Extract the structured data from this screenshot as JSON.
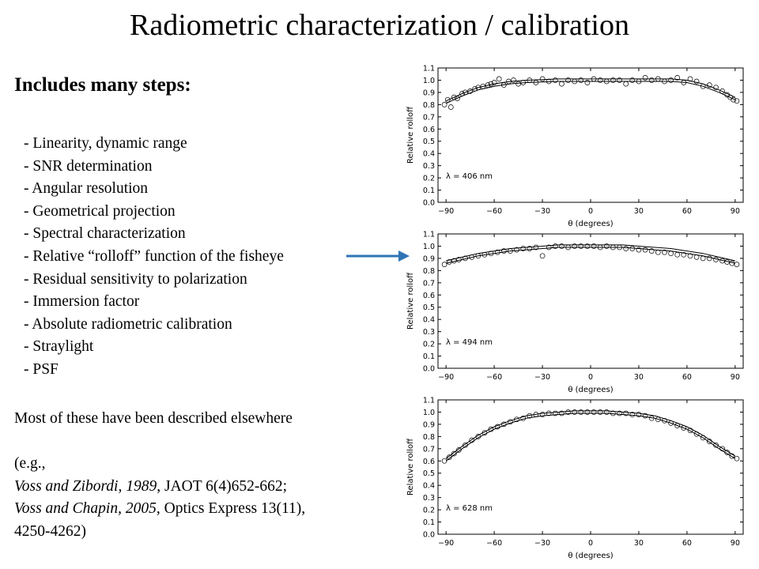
{
  "title": "Radiometric characterization / calibration",
  "subhead": "Includes many steps:",
  "steps": [
    "-  Linearity, dynamic range",
    "-  SNR determination",
    "- Angular resolution",
    "-  Geometrical projection",
    "-  Spectral characterization",
    "-  Relative “rolloff” function of the fisheye",
    "-  Residual sensitivity to polarization",
    "-  Immersion factor",
    "- Absolute radiometric calibration",
    "-  Straylight",
    "-  PSF"
  ],
  "note": {
    "line1": "Most of these have been described elsewhere",
    "line2": "(e.g.,",
    "ref1_authors": "Voss and Zibordi, 1989",
    "ref1_rest": ", JAOT 6(4)652-662;",
    "ref2_authors": "Voss and Chapin, 2005",
    "ref2_rest": ", Optics Express 13(11),",
    "ref2_pages": "4250-4262)"
  },
  "arrow_color": "#2e74b5",
  "chart_data": [
    {
      "type": "scatter",
      "annotation": "λ = 406 nm",
      "xlabel": "θ (degrees)",
      "ylabel": "Relative rolloff",
      "xlim": [
        -95,
        95
      ],
      "ylim": [
        0,
        1.1
      ],
      "xticks": [
        "−90",
        "−60",
        "−30",
        "0",
        "30",
        "60",
        "90"
      ],
      "yticks": [
        "0.0",
        "0.1",
        "0.2",
        "0.3",
        "0.4",
        "0.5",
        "0.6",
        "0.7",
        "0.8",
        "0.9",
        "1.0",
        "1.1"
      ],
      "grid": false,
      "fit_curve": {
        "x": [
          -90,
          -80,
          -70,
          -60,
          -50,
          -40,
          -30,
          -20,
          -10,
          0,
          10,
          20,
          30,
          40,
          50,
          60,
          70,
          80,
          90
        ],
        "y": [
          0.82,
          0.88,
          0.93,
          0.96,
          0.98,
          0.99,
          0.995,
          1.0,
          1.0,
          1.0,
          1.0,
          1.0,
          1.0,
          1.0,
          1.0,
          0.99,
          0.96,
          0.91,
          0.85
        ]
      },
      "points": {
        "x": [
          -91,
          -89,
          -87,
          -85,
          -83,
          -80,
          -78,
          -75,
          -72,
          -70,
          -67,
          -64,
          -62,
          -60,
          -57,
          -54,
          -51,
          -48,
          -45,
          -42,
          -38,
          -34,
          -30,
          -26,
          -22,
          -18,
          -14,
          -10,
          -6,
          -2,
          2,
          6,
          10,
          14,
          18,
          22,
          26,
          30,
          34,
          38,
          42,
          46,
          50,
          54,
          58,
          62,
          66,
          70,
          74,
          78,
          82,
          85,
          87,
          89,
          91
        ],
        "y": [
          0.8,
          0.84,
          0.78,
          0.86,
          0.85,
          0.89,
          0.9,
          0.91,
          0.93,
          0.94,
          0.95,
          0.96,
          0.97,
          0.98,
          1.01,
          0.96,
          0.99,
          1.0,
          0.97,
          0.98,
          1.0,
          0.98,
          1.01,
          0.99,
          1.0,
          0.97,
          1.0,
          0.99,
          1.0,
          0.98,
          1.01,
          1.0,
          0.99,
          1.0,
          1.0,
          0.97,
          1.0,
          0.99,
          1.02,
          1.0,
          1.01,
          0.99,
          1.0,
          1.02,
          0.98,
          1.01,
          0.99,
          0.95,
          0.96,
          0.94,
          0.91,
          0.88,
          0.86,
          0.84,
          0.83
        ]
      }
    },
    {
      "type": "scatter",
      "annotation": "λ = 494 nm",
      "xlabel": "θ (degrees)",
      "ylabel": "Relative rolloff",
      "xlim": [
        -95,
        95
      ],
      "ylim": [
        0,
        1.1
      ],
      "xticks": [
        "−90",
        "−60",
        "−30",
        "0",
        "30",
        "60",
        "90"
      ],
      "yticks": [
        "0.0",
        "0.1",
        "0.2",
        "0.3",
        "0.4",
        "0.5",
        "0.6",
        "0.7",
        "0.8",
        "0.9",
        "1.0",
        "1.1"
      ],
      "grid": false,
      "fit_curve": {
        "x": [
          -90,
          -80,
          -70,
          -60,
          -50,
          -40,
          -30,
          -20,
          -10,
          0,
          10,
          20,
          30,
          40,
          50,
          60,
          70,
          80,
          90
        ],
        "y": [
          0.87,
          0.9,
          0.93,
          0.95,
          0.97,
          0.98,
          0.99,
          1.0,
          1.0,
          1.0,
          1.0,
          1.0,
          0.99,
          0.98,
          0.97,
          0.95,
          0.93,
          0.9,
          0.87
        ]
      },
      "points": {
        "x": [
          -91,
          -88,
          -85,
          -82,
          -78,
          -74,
          -70,
          -66,
          -62,
          -58,
          -54,
          -50,
          -46,
          -42,
          -38,
          -34,
          -30,
          -26,
          -22,
          -18,
          -14,
          -10,
          -6,
          -2,
          2,
          6,
          10,
          14,
          18,
          22,
          26,
          30,
          34,
          38,
          42,
          46,
          50,
          54,
          58,
          62,
          66,
          70,
          74,
          78,
          82,
          85,
          88,
          91
        ],
        "y": [
          0.85,
          0.87,
          0.88,
          0.89,
          0.9,
          0.91,
          0.92,
          0.93,
          0.94,
          0.95,
          0.96,
          0.96,
          0.97,
          0.98,
          0.98,
          0.99,
          0.92,
          0.99,
          1.0,
          1.0,
          0.99,
          1.0,
          1.0,
          1.0,
          1.0,
          0.99,
          1.0,
          0.99,
          0.99,
          0.98,
          0.98,
          0.97,
          0.97,
          0.96,
          0.95,
          0.95,
          0.94,
          0.93,
          0.93,
          0.92,
          0.91,
          0.9,
          0.9,
          0.89,
          0.88,
          0.87,
          0.86,
          0.85
        ]
      }
    },
    {
      "type": "scatter",
      "annotation": "λ = 628 nm",
      "xlabel": "θ (degrees)",
      "ylabel": "Relative rolloff",
      "xlim": [
        -95,
        95
      ],
      "ylim": [
        0,
        1.1
      ],
      "xticks": [
        "−90",
        "−60",
        "−30",
        "0",
        "30",
        "60",
        "90"
      ],
      "yticks": [
        "0.0",
        "0.1",
        "0.2",
        "0.3",
        "0.4",
        "0.5",
        "0.6",
        "0.7",
        "0.8",
        "0.9",
        "1.0",
        "1.1"
      ],
      "grid": false,
      "fit_curve": {
        "x": [
          -90,
          -80,
          -70,
          -60,
          -50,
          -40,
          -30,
          -20,
          -10,
          0,
          10,
          20,
          30,
          40,
          50,
          60,
          70,
          80,
          90
        ],
        "y": [
          0.61,
          0.71,
          0.8,
          0.87,
          0.92,
          0.96,
          0.98,
          0.99,
          1.0,
          1.0,
          1.0,
          0.99,
          0.98,
          0.96,
          0.92,
          0.87,
          0.8,
          0.71,
          0.63
        ]
      },
      "points": {
        "x": [
          -91,
          -88,
          -85,
          -82,
          -78,
          -74,
          -70,
          -66,
          -62,
          -58,
          -54,
          -50,
          -46,
          -42,
          -38,
          -34,
          -30,
          -26,
          -22,
          -18,
          -14,
          -10,
          -6,
          -2,
          2,
          6,
          10,
          14,
          18,
          22,
          26,
          30,
          34,
          38,
          42,
          46,
          50,
          54,
          58,
          62,
          66,
          70,
          74,
          78,
          82,
          85,
          88,
          91
        ],
        "y": [
          0.6,
          0.63,
          0.66,
          0.69,
          0.73,
          0.77,
          0.8,
          0.83,
          0.86,
          0.88,
          0.9,
          0.92,
          0.94,
          0.95,
          0.97,
          0.98,
          0.98,
          0.99,
          0.99,
          0.99,
          1.0,
          1.0,
          1.0,
          1.0,
          1.0,
          1.0,
          1.0,
          0.99,
          0.99,
          0.99,
          0.98,
          0.98,
          0.97,
          0.95,
          0.94,
          0.93,
          0.91,
          0.89,
          0.87,
          0.85,
          0.82,
          0.79,
          0.76,
          0.73,
          0.7,
          0.67,
          0.64,
          0.62
        ]
      }
    }
  ]
}
